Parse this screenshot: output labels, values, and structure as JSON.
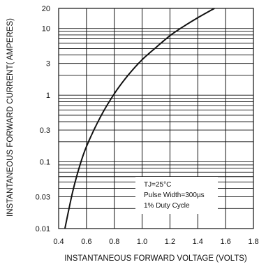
{
  "chart_data": {
    "type": "line",
    "title": "",
    "xlabel": "INSTANTANEOUS FORWARD VOLTAGE (VOLTS)",
    "ylabel": "INSTANTANEOUS FORWARD CURRENT( AMPERES)",
    "x_scale": "linear",
    "y_scale": "log",
    "xlim": [
      0.4,
      1.8
    ],
    "ylim": [
      0.01,
      20
    ],
    "x_ticks": [
      0.4,
      0.6,
      0.8,
      1.0,
      1.2,
      1.4,
      1.6,
      1.8
    ],
    "x_tick_labels": [
      "0.4",
      "0.6",
      "0.8",
      "1.0",
      "1.2",
      "1.4",
      "1.6",
      "1.8"
    ],
    "y_ticks": [
      0.01,
      0.03,
      0.1,
      0.3,
      1,
      3,
      10,
      20
    ],
    "y_tick_labels": [
      "0.01",
      "0.03",
      "0.1",
      "0.3",
      "1",
      "3",
      "10",
      "20"
    ],
    "grid": true,
    "series": [
      {
        "name": "",
        "x": [
          0.445,
          0.5,
          0.55,
          0.6,
          0.7,
          0.8,
          0.9,
          1.0,
          1.1,
          1.2,
          1.3,
          1.4,
          1.5,
          1.52
        ],
        "y": [
          0.01,
          0.035,
          0.085,
          0.17,
          0.47,
          1.05,
          2.0,
          3.4,
          5.2,
          7.8,
          10.8,
          14.5,
          19.0,
          20.0
        ]
      }
    ],
    "annotation": {
      "lines": [
        "TJ=25°C",
        "Pulse Width=300µs",
        "1% Duty Cycle"
      ]
    },
    "colors": {
      "line": "#111111",
      "grid": "#111111",
      "background": "#ffffff"
    }
  }
}
